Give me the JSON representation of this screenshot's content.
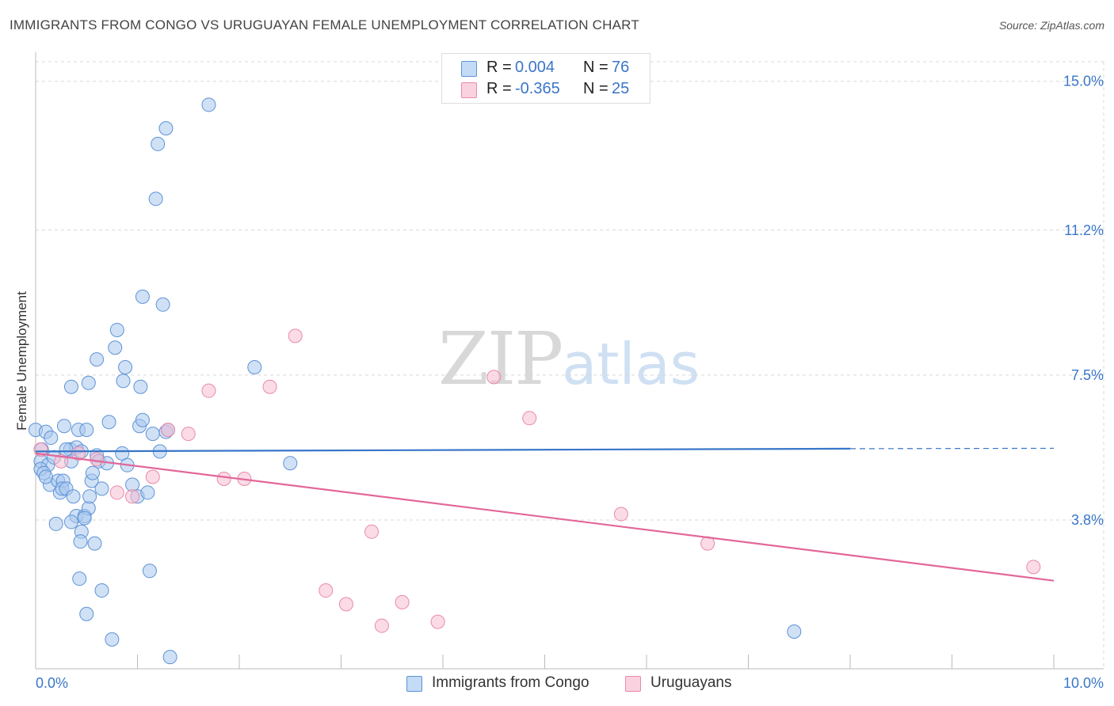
{
  "header": {
    "title": "IMMIGRANTS FROM CONGO VS URUGUAYAN FEMALE UNEMPLOYMENT CORRELATION CHART",
    "source": "Source: ZipAtlas.com"
  },
  "watermark": {
    "zip": "ZIP",
    "atlas": "atlas"
  },
  "legend_top": [
    {
      "r_label": "R =",
      "r_value": "0.004",
      "n_label": "N =",
      "n_value": "76"
    },
    {
      "r_label": "R =",
      "r_value": "-0.365",
      "n_label": "N =",
      "n_value": "25"
    }
  ],
  "legend_bottom": [
    {
      "label": "Immigrants from Congo"
    },
    {
      "label": "Uruguayans"
    }
  ],
  "colors": {
    "congo_fill": "#a9c9ef",
    "congo_stroke": "#5d93d6",
    "congo_line": "#3876c9",
    "uru_fill": "#f7c0d1",
    "uru_stroke": "#e98aa8",
    "uru_line": "#e2679a",
    "axis_text": "#3a76c8",
    "grid": "#d8d8d8"
  },
  "chart_data": {
    "type": "scatter",
    "title": "IMMIGRANTS FROM CONGO VS URUGUAYAN FEMALE UNEMPLOYMENT CORRELATION CHART",
    "xlabel": "",
    "ylabel": "Female Unemployment",
    "xlim": [
      0,
      10
    ],
    "ylim": [
      0,
      15.5
    ],
    "x_tick_labels": [
      "0.0%",
      "10.0%"
    ],
    "y_ticks": [
      3.8,
      7.5,
      11.2,
      15.0
    ],
    "y_tick_labels": [
      "3.8%",
      "7.5%",
      "11.2%",
      "15.0%"
    ],
    "grid": true,
    "legend_position": "top-center",
    "series": [
      {
        "name": "Immigrants from Congo",
        "r": 0.004,
        "n": 76,
        "trend": {
          "x0": 0.0,
          "y0": 5.55,
          "x1": 8.0,
          "y1": 5.62,
          "dashed_to_x": 10.0,
          "dashed_y": 5.63
        },
        "points": [
          [
            0.0,
            6.1
          ],
          [
            0.06,
            5.6
          ],
          [
            0.05,
            5.3
          ],
          [
            0.12,
            5.2
          ],
          [
            0.05,
            5.1
          ],
          [
            0.08,
            5.0
          ],
          [
            0.1,
            6.05
          ],
          [
            0.15,
            5.9
          ],
          [
            0.18,
            5.4
          ],
          [
            0.14,
            4.7
          ],
          [
            0.22,
            4.8
          ],
          [
            0.24,
            4.5
          ],
          [
            0.27,
            4.8
          ],
          [
            0.26,
            4.6
          ],
          [
            0.3,
            4.6
          ],
          [
            0.28,
            6.2
          ],
          [
            0.34,
            5.6
          ],
          [
            0.35,
            5.3
          ],
          [
            0.4,
            5.65
          ],
          [
            0.42,
            6.1
          ],
          [
            0.37,
            4.4
          ],
          [
            0.4,
            3.9
          ],
          [
            0.45,
            3.5
          ],
          [
            0.44,
            3.25
          ],
          [
            0.48,
            3.9
          ],
          [
            0.5,
            6.1
          ],
          [
            0.52,
            4.1
          ],
          [
            0.55,
            4.8
          ],
          [
            0.56,
            5.0
          ],
          [
            0.6,
            5.45
          ],
          [
            0.62,
            5.3
          ],
          [
            0.65,
            4.6
          ],
          [
            0.7,
            5.25
          ],
          [
            0.72,
            6.3
          ],
          [
            0.58,
            3.2
          ],
          [
            0.53,
            4.4
          ],
          [
            0.48,
            3.85
          ],
          [
            0.2,
            3.7
          ],
          [
            0.35,
            3.75
          ],
          [
            0.43,
            2.3
          ],
          [
            0.65,
            2.0
          ],
          [
            0.5,
            1.4
          ],
          [
            0.75,
            0.75
          ],
          [
            0.85,
            5.5
          ],
          [
            0.9,
            5.2
          ],
          [
            0.95,
            4.7
          ],
          [
            1.0,
            4.4
          ],
          [
            1.02,
            6.2
          ],
          [
            1.05,
            6.35
          ],
          [
            1.1,
            4.5
          ],
          [
            1.15,
            6.0
          ],
          [
            1.22,
            5.55
          ],
          [
            1.25,
            9.3
          ],
          [
            1.05,
            9.5
          ],
          [
            0.8,
            8.65
          ],
          [
            0.78,
            8.2
          ],
          [
            0.6,
            7.9
          ],
          [
            0.88,
            7.7
          ],
          [
            0.86,
            7.35
          ],
          [
            1.03,
            7.2
          ],
          [
            0.52,
            7.3
          ],
          [
            0.35,
            7.2
          ],
          [
            1.28,
            6.05
          ],
          [
            1.3,
            6.1
          ],
          [
            1.2,
            13.4
          ],
          [
            1.28,
            13.8
          ],
          [
            1.18,
            12.0
          ],
          [
            1.7,
            14.4
          ],
          [
            1.12,
            2.5
          ],
          [
            1.32,
            0.3
          ],
          [
            2.15,
            7.7
          ],
          [
            2.5,
            5.25
          ],
          [
            7.45,
            0.95
          ],
          [
            0.3,
            5.6
          ],
          [
            0.45,
            5.55
          ],
          [
            0.1,
            4.9
          ]
        ]
      },
      {
        "name": "Uruguayans",
        "r": -0.365,
        "n": 25,
        "trend": {
          "x0": 0.0,
          "y0": 5.5,
          "x1": 10.0,
          "y1": 2.25
        },
        "points": [
          [
            0.05,
            5.6
          ],
          [
            0.25,
            5.3
          ],
          [
            0.42,
            5.5
          ],
          [
            0.6,
            5.35
          ],
          [
            0.8,
            4.5
          ],
          [
            0.95,
            4.4
          ],
          [
            1.15,
            4.9
          ],
          [
            1.3,
            6.1
          ],
          [
            1.5,
            6.0
          ],
          [
            1.7,
            7.1
          ],
          [
            1.85,
            4.85
          ],
          [
            2.05,
            4.85
          ],
          [
            2.3,
            7.2
          ],
          [
            2.55,
            8.5
          ],
          [
            2.85,
            2.0
          ],
          [
            3.05,
            1.65
          ],
          [
            3.3,
            3.5
          ],
          [
            3.4,
            1.1
          ],
          [
            3.6,
            1.7
          ],
          [
            3.95,
            1.2
          ],
          [
            4.5,
            7.45
          ],
          [
            4.85,
            6.4
          ],
          [
            5.75,
            3.95
          ],
          [
            6.6,
            3.2
          ],
          [
            9.8,
            2.6
          ]
        ]
      }
    ]
  }
}
